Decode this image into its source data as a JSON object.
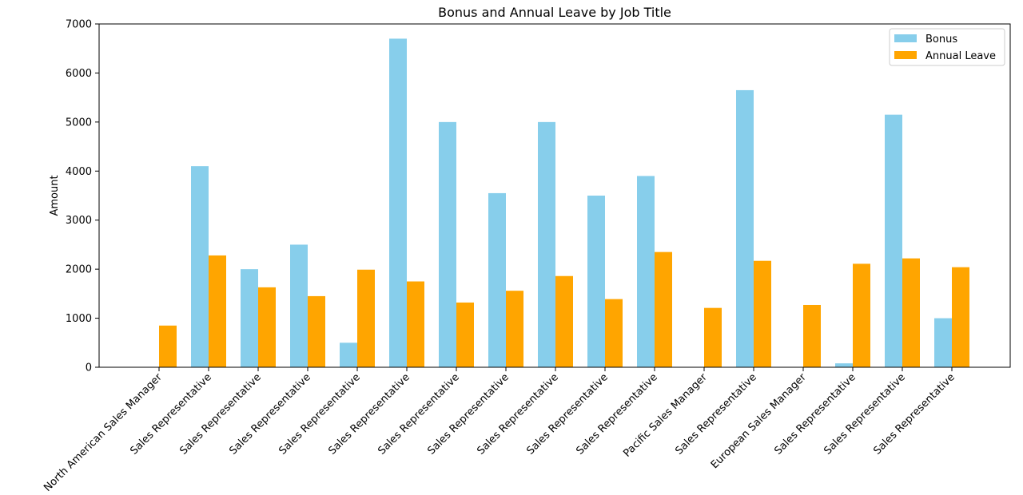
{
  "chart_data": {
    "type": "bar",
    "title": "Bonus and Annual Leave by Job Title",
    "xlabel": "",
    "ylabel": "Amount",
    "ylim": [
      0,
      7000
    ],
    "yticks": [
      0,
      1000,
      2000,
      3000,
      4000,
      5000,
      6000,
      7000
    ],
    "categories": [
      "North American Sales Manager",
      "Sales Representative",
      "Sales Representative",
      "Sales Representative",
      "Sales Representative",
      "Sales Representative",
      "Sales Representative",
      "Sales Representative",
      "Sales Representative",
      "Sales Representative",
      "Sales Representative",
      "Pacific Sales Manager",
      "Sales Representative",
      "European Sales Manager",
      "Sales Representative",
      "Sales Representative",
      "Sales Representative"
    ],
    "series": [
      {
        "name": "Bonus",
        "color": "#87ceeb",
        "values": [
          0,
          4100,
          2000,
          2500,
          500,
          6700,
          5000,
          3550,
          5000,
          3500,
          3900,
          0,
          5650,
          0,
          80,
          5150,
          1000
        ]
      },
      {
        "name": "Annual Leave",
        "color": "#ffa500",
        "values": [
          850,
          2280,
          1630,
          1450,
          1990,
          1750,
          1320,
          1560,
          1860,
          1390,
          2350,
          1210,
          2170,
          1270,
          2110,
          2220,
          2040
        ]
      }
    ],
    "legend_position": "top-right",
    "grid": false
  }
}
